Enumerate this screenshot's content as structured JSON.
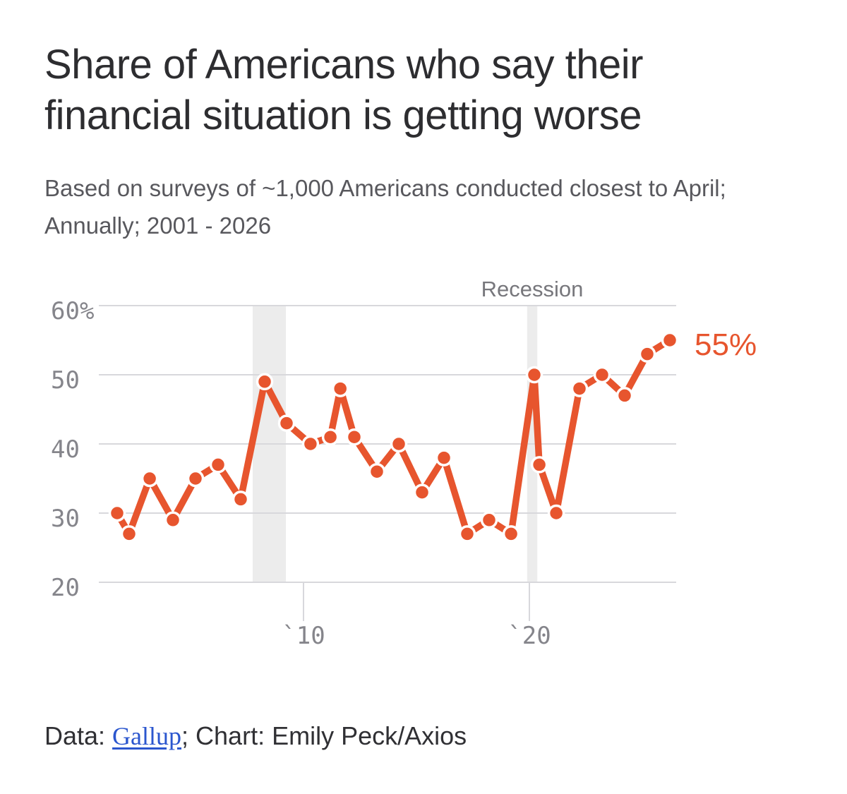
{
  "title": {
    "line1": "Share of Americans who say their",
    "line2": "financial situation is getting worse"
  },
  "subtitle": {
    "line1": "Based on surveys of ~1,000 Americans conducted closest to April;",
    "line2": "Annually; 2001 - 2026"
  },
  "footer": {
    "prefix": "Data: ",
    "link_label": "Gallup",
    "suffix": "; Chart: Emily Peck/Axios"
  },
  "colors": {
    "line_orange": "#e7552e",
    "dot_halo": "#ffffff",
    "gridline": "#d8d8dc",
    "recession_band": "#ececec",
    "axis_label": "#85858b",
    "link_blue": "#2b56ce"
  },
  "chart_data": {
    "type": "line",
    "title": "Share of Americans who say their financial situation is getting worse",
    "subtitle": "Based on surveys of ~1,000 Americans conducted closest to April; Annually; 2001 - 2026",
    "unit": "percent of Americans",
    "ylim": [
      20,
      60
    ],
    "grid": true,
    "yticks": {
      "labels": [
        "60%",
        "50",
        "40",
        "30",
        "20"
      ],
      "values": [
        60,
        50,
        40,
        30,
        20
      ]
    },
    "xticks": [
      {
        "label": "`10",
        "year": 2010
      },
      {
        "label": "`20",
        "year": 2020
      }
    ],
    "recession_label": "Recession",
    "recessions": [
      {
        "start_year": 2007.75,
        "end_year": 2009.22
      },
      {
        "start_year": 2019.9,
        "end_year": 2020.35
      }
    ],
    "end_label": "55%",
    "points": [
      {
        "year": 2001.75,
        "value": 30
      },
      {
        "year": 2002.28,
        "value": 27
      },
      {
        "year": 2003.19,
        "value": 35
      },
      {
        "year": 2004.22,
        "value": 29
      },
      {
        "year": 2005.22,
        "value": 35
      },
      {
        "year": 2006.22,
        "value": 37
      },
      {
        "year": 2007.22,
        "value": 32
      },
      {
        "year": 2008.28,
        "value": 49
      },
      {
        "year": 2009.25,
        "value": 43
      },
      {
        "year": 2010.31,
        "value": 40
      },
      {
        "year": 2011.19,
        "value": 41
      },
      {
        "year": 2011.63,
        "value": 48
      },
      {
        "year": 2012.25,
        "value": 41
      },
      {
        "year": 2013.25,
        "value": 36
      },
      {
        "year": 2014.22,
        "value": 40
      },
      {
        "year": 2015.25,
        "value": 33
      },
      {
        "year": 2016.22,
        "value": 38
      },
      {
        "year": 2017.25,
        "value": 27
      },
      {
        "year": 2018.22,
        "value": 29
      },
      {
        "year": 2019.19,
        "value": 27
      },
      {
        "year": 2020.22,
        "value": 50
      },
      {
        "year": 2020.44,
        "value": 37
      },
      {
        "year": 2021.19,
        "value": 30
      },
      {
        "year": 2022.22,
        "value": 48
      },
      {
        "year": 2023.22,
        "value": 50
      },
      {
        "year": 2024.22,
        "value": 47
      },
      {
        "year": 2025.22,
        "value": 53
      },
      {
        "year": 2026.22,
        "value": 55
      }
    ]
  }
}
